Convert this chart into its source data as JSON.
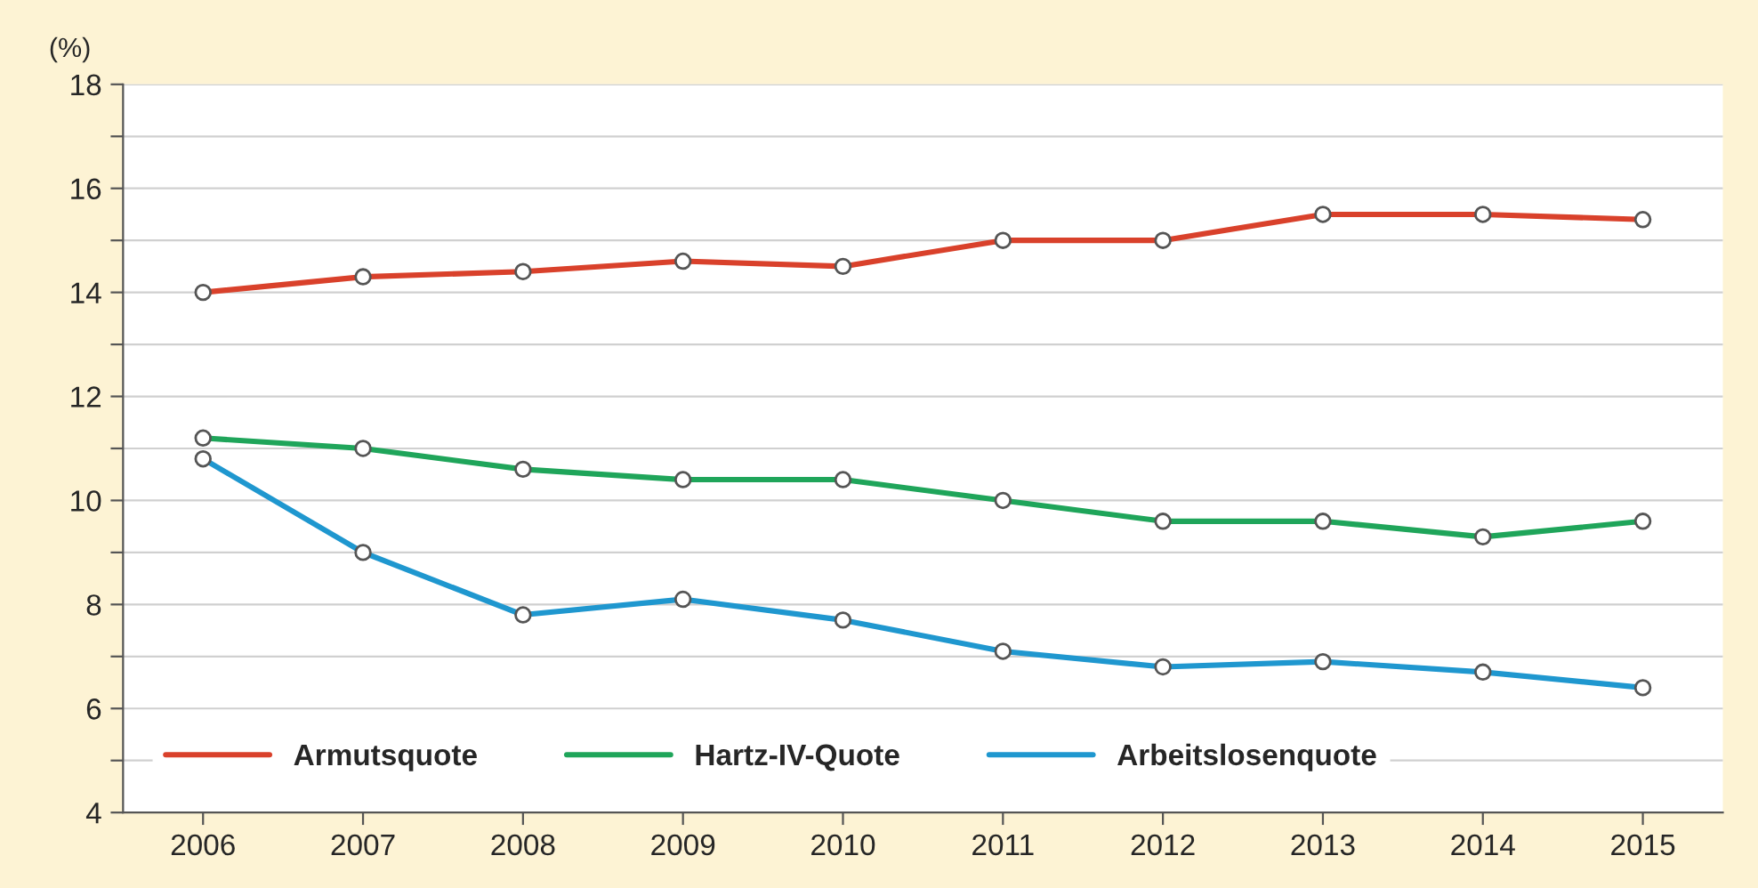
{
  "chart_data": {
    "type": "line",
    "ylabel": "(%)",
    "categories": [
      "2006",
      "2007",
      "2008",
      "2009",
      "2010",
      "2011",
      "2012",
      "2013",
      "2014",
      "2015"
    ],
    "series": [
      {
        "name": "Armutsquote",
        "color": "#d9412b",
        "values": [
          14.0,
          14.3,
          14.4,
          14.6,
          14.5,
          15.0,
          15.0,
          15.5,
          15.5,
          15.4
        ]
      },
      {
        "name": "Hartz-IV-Quote",
        "color": "#1fa55a",
        "values": [
          11.2,
          11.0,
          10.6,
          10.4,
          10.4,
          10.0,
          9.6,
          9.6,
          9.3,
          9.6
        ]
      },
      {
        "name": "Arbeitslosenquote",
        "color": "#1f97cf",
        "values": [
          10.8,
          9.0,
          7.8,
          8.1,
          7.7,
          7.1,
          6.8,
          6.9,
          6.7,
          6.4
        ]
      }
    ],
    "ylim": [
      4,
      18
    ],
    "yticks": [
      4,
      {
        "value": 5,
        "label": null
      },
      6,
      {
        "value": 7,
        "label": null
      },
      8,
      {
        "value": 9,
        "label": null
      },
      10,
      {
        "value": 11,
        "label": null
      },
      12,
      {
        "value": 13,
        "label": null
      },
      14,
      {
        "value": 15,
        "label": null
      },
      16,
      {
        "value": 17,
        "label": null
      },
      18
    ],
    "grid": "y",
    "legend": "bottom left",
    "marker": "circle",
    "line_style": "solid"
  }
}
